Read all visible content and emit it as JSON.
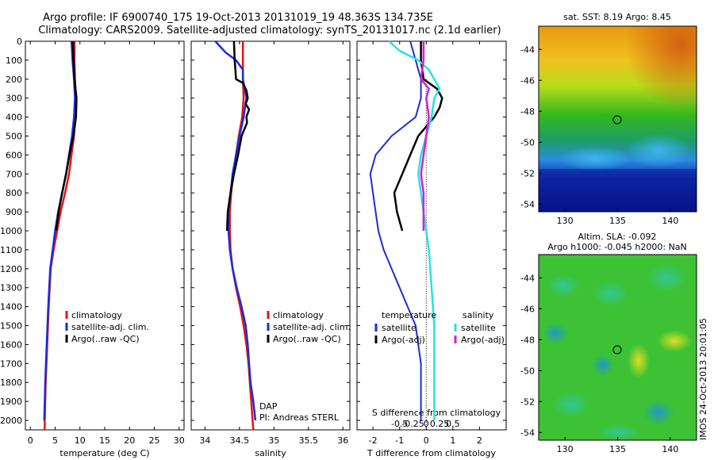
{
  "title_line1": "Argo profile: IF 6900740_175 19-Oct-2013 20131019_19 48.363S 134.735E",
  "title_line2": "Climatology: CARS2009. Satellite-adjusted climatology: synTS_20131017.nc (2.1d earlier)",
  "colors": {
    "climatology": "#e8120f",
    "satellite": "#1a2ed9",
    "argo": "#000000",
    "sal_satellite": "#25e3e3",
    "sal_argo": "#d61fd1"
  },
  "depth_ticks": [
    "0",
    "100",
    "200",
    "300",
    "400",
    "500",
    "600",
    "700",
    "800",
    "900",
    "1000",
    "1100",
    "1200",
    "1300",
    "1400",
    "1500",
    "1600",
    "1700",
    "1800",
    "1900",
    "2000"
  ],
  "legend_profiles": [
    "climatology",
    "satellite-adj. clim.",
    "Argo(..raw -QC)"
  ],
  "dap_text": "DAP",
  "pi_text": "PI: Andreas STERL",
  "legend_diff": {
    "temp_header": "temperature",
    "sal_header": "salinity",
    "temp_sat": "satellite",
    "temp_argo": "Argo(-adj)",
    "sal_sat": "satellite",
    "sal_argo": "Argo(-adj)"
  },
  "diff_s_label": "S difference from climatology",
  "sst_title": "sat. SST: 8.19 Argo: 8.45",
  "sla_title1": "Altim. SLA: -0.092",
  "sla_title2": "Argo h1000: -0.045 h2000: NaN",
  "timestamp": "IMOS 24-Oct-2013 20:01:05",
  "chart_data": [
    {
      "type": "line",
      "xlabel": "temperature (deg C)",
      "ylabel": "",
      "xlim": [
        -1,
        31
      ],
      "ylim": [
        2050,
        0
      ],
      "x_ticks": [
        0,
        5,
        10,
        15,
        20,
        25,
        30
      ],
      "series": [
        {
          "name": "climatology",
          "values": [
            [
              8.9,
              0
            ],
            [
              8.9,
              100
            ],
            [
              9.0,
              200
            ],
            [
              9.2,
              300
            ],
            [
              9.0,
              400
            ],
            [
              8.8,
              500
            ],
            [
              8.3,
              600
            ],
            [
              7.8,
              700
            ],
            [
              7.0,
              800
            ],
            [
              6.1,
              900
            ],
            [
              5.4,
              1000
            ],
            [
              4.7,
              1100
            ],
            [
              4.1,
              1200
            ],
            [
              3.7,
              1400
            ],
            [
              3.4,
              1600
            ],
            [
              3.1,
              1800
            ],
            [
              2.9,
              2000
            ],
            [
              2.9,
              2050
            ]
          ]
        },
        {
          "name": "satellite-adj. clim.",
          "values": [
            [
              8.3,
              0
            ],
            [
              8.5,
              100
            ],
            [
              8.8,
              200
            ],
            [
              9.0,
              300
            ],
            [
              8.8,
              400
            ],
            [
              8.4,
              500
            ],
            [
              7.8,
              600
            ],
            [
              7.2,
              700
            ],
            [
              6.4,
              800
            ],
            [
              5.6,
              900
            ],
            [
              5.0,
              1000
            ],
            [
              4.5,
              1100
            ],
            [
              4.0,
              1200
            ],
            [
              3.6,
              1400
            ],
            [
              3.3,
              1600
            ],
            [
              3.0,
              1800
            ],
            [
              2.8,
              2000
            ]
          ]
        },
        {
          "name": "Argo(..raw -QC)",
          "values": [
            [
              8.6,
              0
            ],
            [
              8.7,
              100
            ],
            [
              8.9,
              200
            ],
            [
              9.3,
              300
            ],
            [
              9.2,
              400
            ],
            [
              8.7,
              500
            ],
            [
              7.9,
              600
            ],
            [
              7.2,
              700
            ],
            [
              6.4,
              800
            ],
            [
              5.7,
              900
            ],
            [
              5.2,
              1000
            ]
          ]
        }
      ]
    },
    {
      "type": "line",
      "xlabel": "salinity",
      "ylabel": "",
      "xlim": [
        33.8,
        36.1
      ],
      "ylim": [
        2050,
        0
      ],
      "x_ticks": [
        34,
        34.5,
        35,
        35.5,
        36
      ],
      "series": [
        {
          "name": "climatology",
          "values": [
            [
              34.55,
              0
            ],
            [
              34.55,
              100
            ],
            [
              34.55,
              200
            ],
            [
              34.56,
              300
            ],
            [
              34.54,
              400
            ],
            [
              34.49,
              500
            ],
            [
              34.45,
              600
            ],
            [
              34.41,
              700
            ],
            [
              34.38,
              800
            ],
            [
              34.36,
              900
            ],
            [
              34.36,
              1000
            ],
            [
              34.37,
              1100
            ],
            [
              34.4,
              1200
            ],
            [
              34.45,
              1300
            ],
            [
              34.51,
              1400
            ],
            [
              34.56,
              1500
            ],
            [
              34.6,
              1600
            ],
            [
              34.63,
              1700
            ],
            [
              34.65,
              1800
            ],
            [
              34.67,
              1900
            ],
            [
              34.69,
              2000
            ],
            [
              34.7,
              2050
            ]
          ]
        },
        {
          "name": "satellite-adj. clim.",
          "values": [
            [
              34.15,
              0
            ],
            [
              34.3,
              60
            ],
            [
              34.45,
              100
            ],
            [
              34.55,
              150
            ],
            [
              34.55,
              200
            ],
            [
              34.6,
              300
            ],
            [
              34.56,
              400
            ],
            [
              34.5,
              500
            ],
            [
              34.45,
              600
            ],
            [
              34.4,
              700
            ],
            [
              34.37,
              800
            ],
            [
              34.34,
              900
            ],
            [
              34.34,
              1000
            ],
            [
              34.36,
              1100
            ],
            [
              34.4,
              1200
            ],
            [
              34.46,
              1300
            ],
            [
              34.53,
              1400
            ],
            [
              34.59,
              1500
            ],
            [
              34.62,
              1600
            ],
            [
              34.64,
              1700
            ],
            [
              34.66,
              1800
            ],
            [
              34.7,
              1900
            ],
            [
              34.73,
              2000
            ]
          ]
        },
        {
          "name": "Argo(..raw -QC)",
          "values": [
            [
              34.42,
              0
            ],
            [
              34.43,
              100
            ],
            [
              34.44,
              150
            ],
            [
              34.45,
              200
            ],
            [
              34.55,
              220
            ],
            [
              34.6,
              260
            ],
            [
              34.62,
              300
            ],
            [
              34.59,
              330
            ],
            [
              34.64,
              360
            ],
            [
              34.6,
              400
            ],
            [
              34.61,
              430
            ],
            [
              34.53,
              500
            ],
            [
              34.48,
              600
            ],
            [
              34.42,
              700
            ],
            [
              34.37,
              800
            ],
            [
              34.33,
              900
            ],
            [
              34.32,
              1000
            ]
          ]
        }
      ]
    },
    {
      "type": "line",
      "xlabel": "T difference from climatology",
      "ylabel": "",
      "xlim": [
        -2.6,
        3.0
      ],
      "ylim": [
        2050,
        0
      ],
      "x_ticks": [
        -2,
        -1,
        0,
        1,
        2
      ],
      "s_ticks_label": [
        "-0.5",
        "-0.25",
        "0",
        "0.25",
        "0.5"
      ],
      "series": [
        {
          "name": "temperature satellite",
          "values": [
            [
              -0.6,
              0
            ],
            [
              -0.4,
              100
            ],
            [
              -0.2,
              200
            ],
            [
              -0.2,
              300
            ],
            [
              -0.4,
              400
            ],
            [
              -1.3,
              500
            ],
            [
              -1.9,
              600
            ],
            [
              -2.1,
              700
            ],
            [
              -2.0,
              800
            ],
            [
              -1.9,
              900
            ],
            [
              -1.8,
              1000
            ],
            [
              -1.6,
              1100
            ],
            [
              -1.3,
              1200
            ],
            [
              -1.0,
              1300
            ],
            [
              -0.7,
              1400
            ],
            [
              -0.4,
              1500
            ],
            [
              -0.3,
              1600
            ],
            [
              -0.2,
              1700
            ],
            [
              -0.2,
              1800
            ],
            [
              -0.2,
              1900
            ],
            [
              -0.2,
              2000
            ]
          ]
        },
        {
          "name": "temperature Argo(-adj)",
          "values": [
            [
              -0.2,
              0
            ],
            [
              -0.2,
              100
            ],
            [
              -0.1,
              200
            ],
            [
              0.4,
              250
            ],
            [
              0.6,
              300
            ],
            [
              0.5,
              350
            ],
            [
              0.3,
              400
            ],
            [
              -0.3,
              500
            ],
            [
              -0.6,
              600
            ],
            [
              -0.9,
              700
            ],
            [
              -1.2,
              800
            ],
            [
              -1.1,
              900
            ],
            [
              -0.9,
              1000
            ]
          ]
        },
        {
          "name": "salinity satellite",
          "values": [
            [
              -1.4,
              0
            ],
            [
              -1.0,
              50
            ],
            [
              -0.3,
              100
            ],
            [
              0.1,
              150
            ],
            [
              0.5,
              250
            ],
            [
              0.3,
              300
            ],
            [
              0.2,
              400
            ],
            [
              0.0,
              500
            ],
            [
              -0.2,
              600
            ],
            [
              -0.3,
              700
            ],
            [
              -0.2,
              800
            ],
            [
              -0.1,
              900
            ],
            [
              0.0,
              1000
            ],
            [
              0.1,
              1100
            ],
            [
              0.2,
              1300
            ],
            [
              0.3,
              1500
            ],
            [
              0.3,
              1700
            ],
            [
              0.3,
              2000
            ]
          ]
        },
        {
          "name": "salinity Argo(-adj)",
          "values": [
            [
              -0.1,
              0
            ],
            [
              -0.1,
              100
            ],
            [
              -0.2,
              200
            ],
            [
              0.1,
              250
            ],
            [
              0.0,
              300
            ],
            [
              0.1,
              400
            ],
            [
              -0.1,
              600
            ],
            [
              -0.2,
              700
            ],
            [
              -0.1,
              800
            ],
            [
              -0.1,
              900
            ],
            [
              -0.1,
              1000
            ]
          ]
        }
      ]
    },
    {
      "type": "heatmap",
      "title": "sat. SST: 8.19 Argo: 8.45",
      "x_ticks": [
        130,
        135,
        140
      ],
      "y_ticks": [
        -44,
        -46,
        -48,
        -50,
        -52,
        -54
      ],
      "xlim": [
        127.5,
        142.5
      ],
      "ylim": [
        -54.5,
        -42.5
      ],
      "marker": [
        134.735,
        -48.363
      ]
    },
    {
      "type": "heatmap",
      "title": "Altim. SLA: -0.092",
      "x_ticks": [
        130,
        135,
        140
      ],
      "y_ticks": [
        -44,
        -46,
        -48,
        -50,
        -52,
        -54
      ],
      "xlim": [
        127.5,
        142.5
      ],
      "ylim": [
        -54.5,
        -42.5
      ],
      "marker": [
        134.735,
        -48.363
      ]
    }
  ]
}
